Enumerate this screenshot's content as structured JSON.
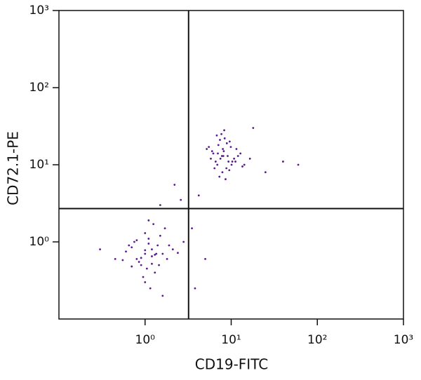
{
  "chart_data": {
    "type": "scatter",
    "x_label": "CD19-FITC",
    "y_label": "CD72.1-PE",
    "x_log": true,
    "y_log": true,
    "xlim": [
      0.1,
      1000
    ],
    "ylim": [
      0.1,
      1000
    ],
    "xticks": [
      {
        "value": 1,
        "label": "10⁰"
      },
      {
        "value": 10,
        "label": "10¹"
      },
      {
        "value": 100,
        "label": "10²"
      },
      {
        "value": 1000,
        "label": "10³"
      }
    ],
    "yticks": [
      {
        "value": 1,
        "label": "10⁰"
      },
      {
        "value": 10,
        "label": "10¹"
      },
      {
        "value": 100,
        "label": "10²"
      },
      {
        "value": 1000,
        "label": "10³"
      }
    ],
    "quadrant_x": 3.2,
    "quadrant_y": 2.7,
    "color": "#5b1a8e",
    "x": [
      7.5,
      8.2,
      6.9,
      9.1,
      10.3,
      7.1,
      8.8,
      6.2,
      11.5,
      7.9,
      9.6,
      5.8,
      8.4,
      12.8,
      7.3,
      6.6,
      9.9,
      8.1,
      14.2,
      5.2,
      7.7,
      10.8,
      6.4,
      8.9,
      9.3,
      7.0,
      12.0,
      8.6,
      6.0,
      10.1,
      7.4,
      16.5,
      8.3,
      5.5,
      9.5,
      7.8,
      11.2,
      6.8,
      8.0,
      13.5,
      1.0,
      1.2,
      0.8,
      1.4,
      0.9,
      1.1,
      1.6,
      0.7,
      1.3,
      1.0,
      0.6,
      1.8,
      1.1,
      0.85,
      1.5,
      0.95,
      1.2,
      2.1,
      0.75,
      1.05,
      1.35,
      0.65,
      1.7,
      1.0,
      0.9,
      2.4,
      1.25,
      0.55,
      1.45,
      1.15,
      0.8,
      1.9,
      1.0,
      1.3,
      0.7,
      1.6,
      0.45,
      1.1,
      2.8,
      1.2,
      3.5,
      4.2,
      2.6,
      25,
      60,
      5.0,
      18,
      1.5,
      0.3,
      3.8,
      2.2,
      40
    ],
    "values": [
      12,
      15,
      10,
      13,
      11,
      18,
      9,
      14,
      16,
      8,
      20,
      12,
      22,
      14,
      7,
      11,
      17,
      13,
      10,
      16,
      25,
      12,
      9,
      19,
      11,
      14,
      13,
      6.5,
      15,
      10,
      21,
      12,
      28,
      17,
      8.5,
      13,
      11,
      24,
      16,
      9.5,
      0.7,
      0.8,
      0.6,
      0.9,
      0.5,
      1.1,
      0.7,
      0.85,
      0.4,
      1.3,
      0.75,
      0.6,
      0.95,
      0.55,
      1.2,
      0.35,
      0.65,
      0.8,
      1.0,
      0.45,
      0.7,
      0.9,
      1.5,
      0.3,
      0.62,
      0.72,
      1.7,
      0.58,
      0.5,
      0.25,
      1.05,
      0.9,
      0.78,
      0.68,
      0.48,
      0.2,
      0.6,
      1.9,
      1.0,
      0.52,
      1.5,
      4.0,
      3.5,
      8,
      10,
      0.6,
      30,
      3.0,
      0.8,
      0.25,
      5.5,
      11
    ]
  }
}
